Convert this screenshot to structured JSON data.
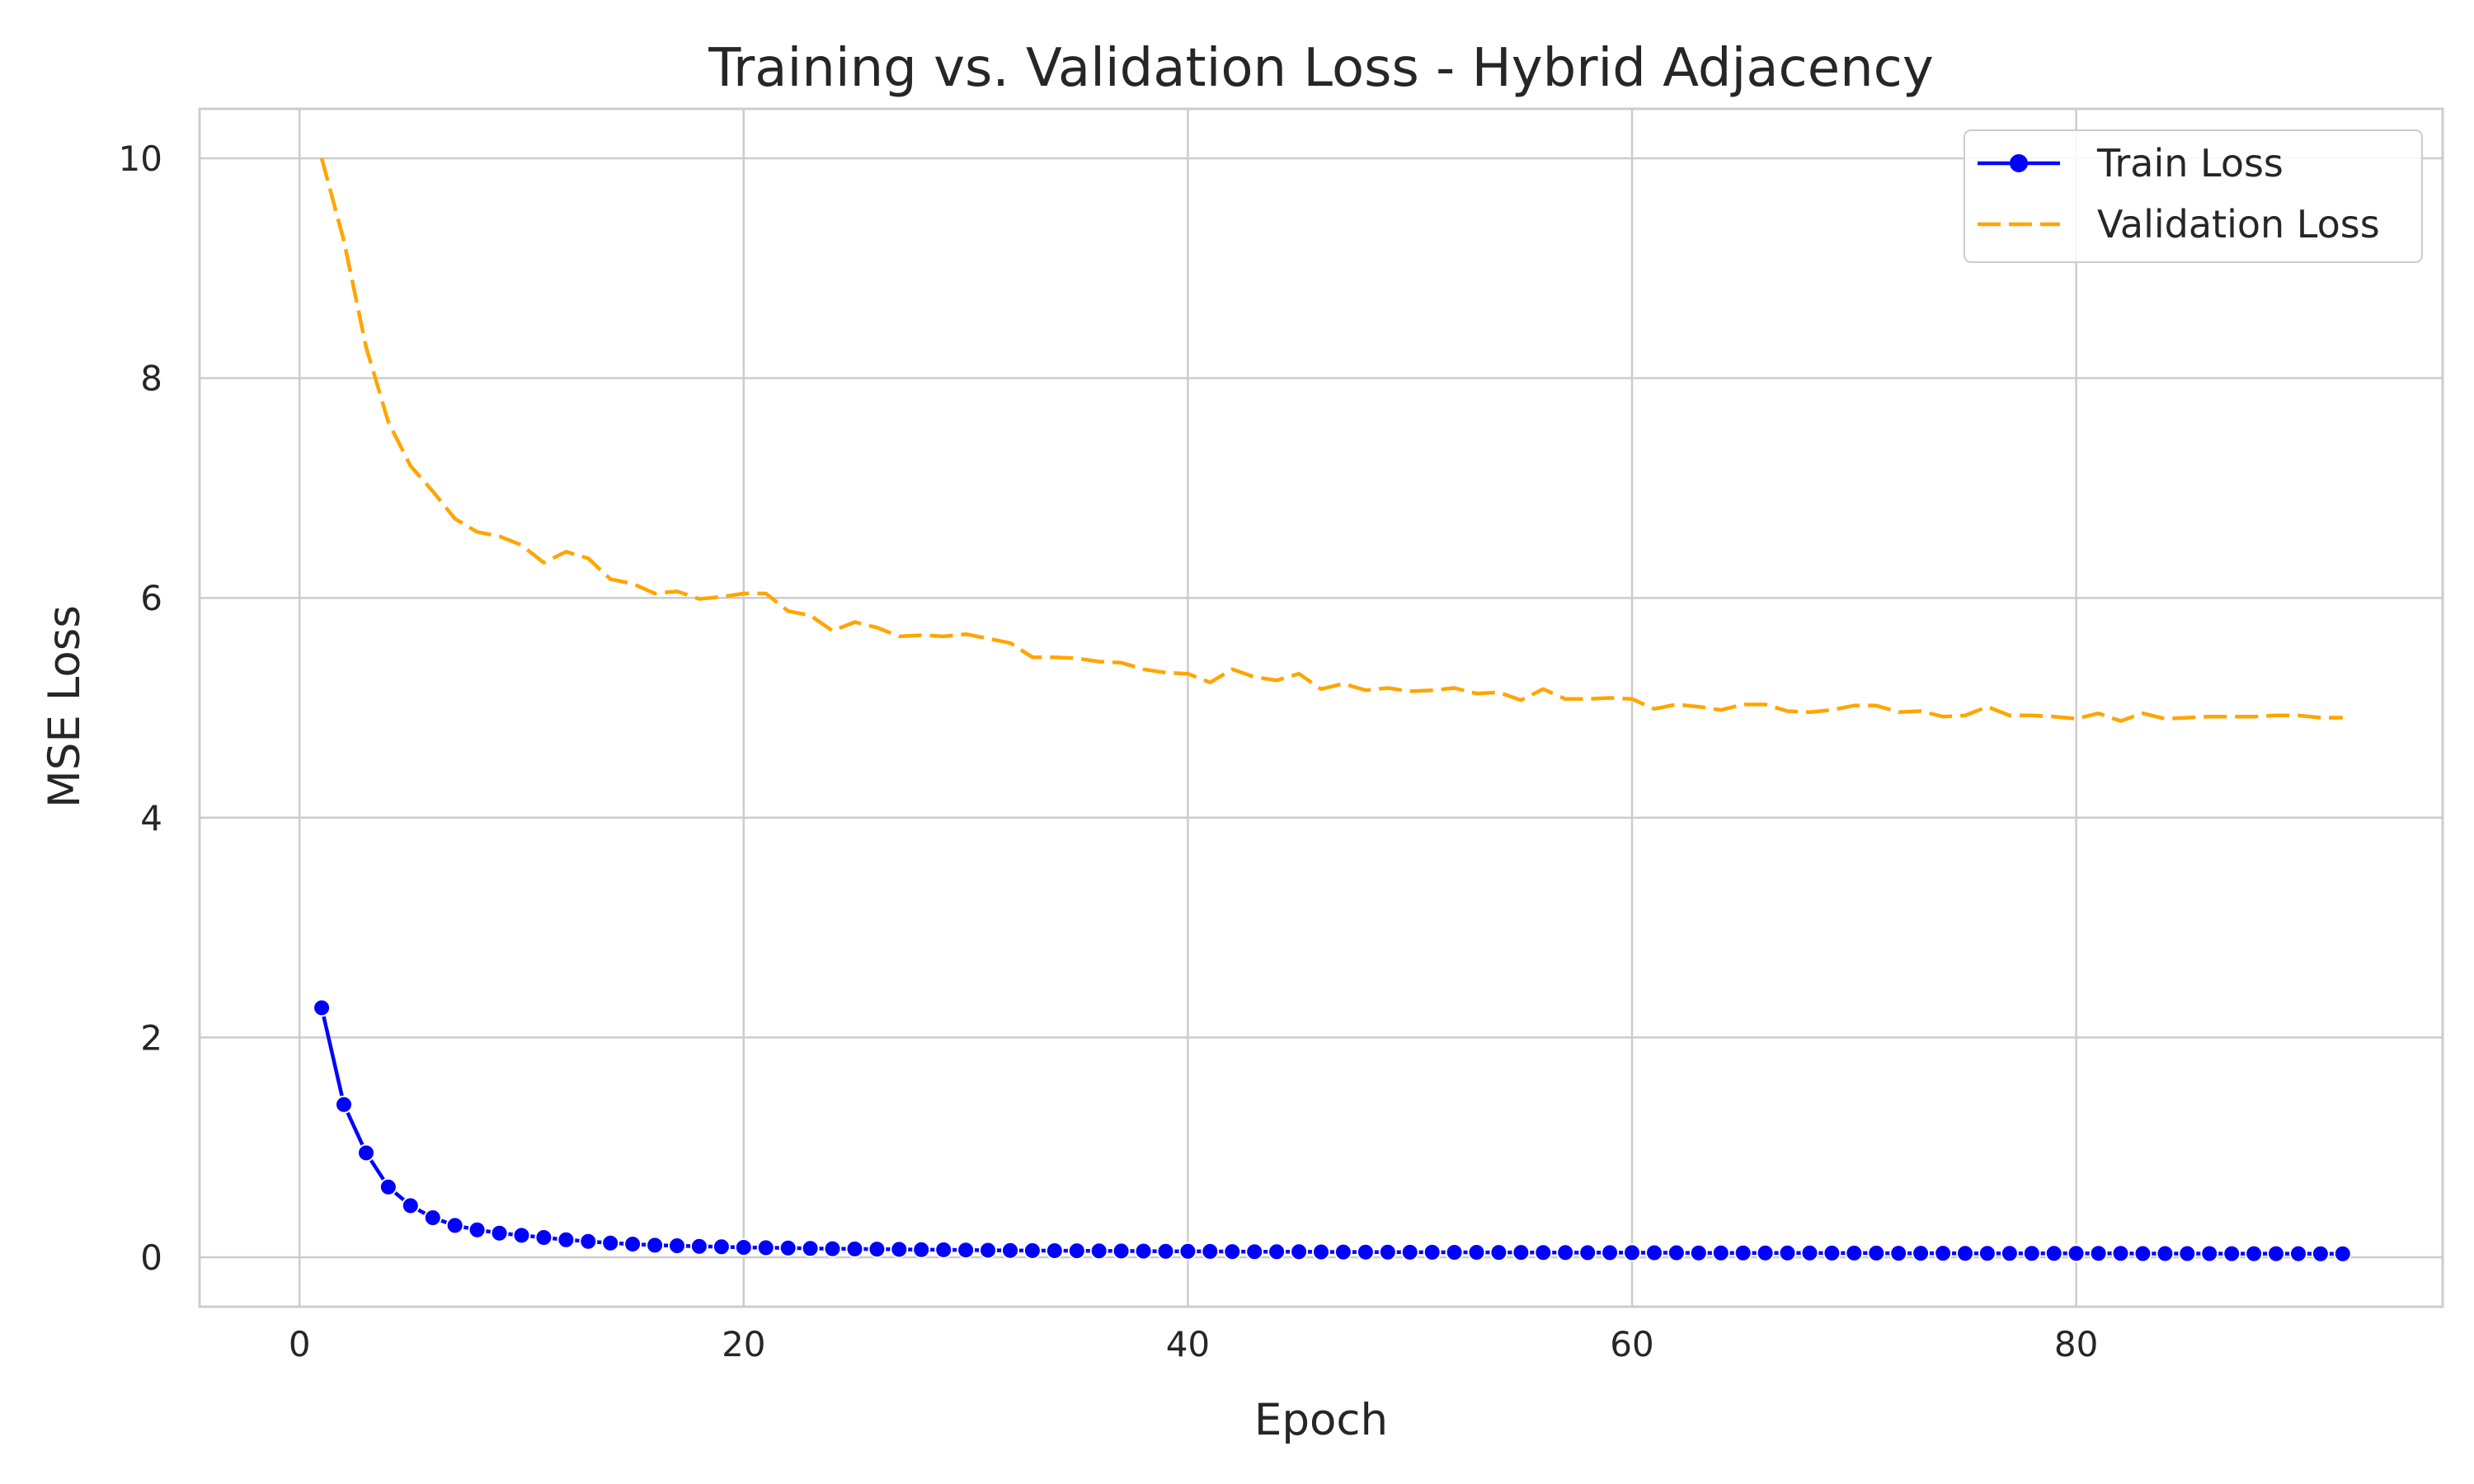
{
  "chart_data": {
    "type": "line",
    "title": "Training vs. Validation Loss - Hybrid Adjacency",
    "xlabel": "Epoch",
    "ylabel": "MSE Loss",
    "xlim": [
      -4.5,
      96.5
    ],
    "ylim": [
      -0.45,
      10.45
    ],
    "xticks": [
      0,
      20,
      40,
      60,
      80
    ],
    "yticks": [
      0,
      2,
      4,
      6,
      8,
      10
    ],
    "grid": true,
    "legend_position": "top-right",
    "x": [
      1,
      2,
      3,
      4,
      5,
      6,
      7,
      8,
      9,
      10,
      11,
      12,
      13,
      14,
      15,
      16,
      17,
      18,
      19,
      20,
      21,
      22,
      23,
      24,
      25,
      26,
      27,
      28,
      29,
      30,
      31,
      32,
      33,
      34,
      35,
      36,
      37,
      38,
      39,
      40,
      41,
      42,
      43,
      44,
      45,
      46,
      47,
      48,
      49,
      50,
      51,
      52,
      53,
      54,
      55,
      56,
      57,
      58,
      59,
      60,
      61,
      62,
      63,
      64,
      65,
      66,
      67,
      68,
      69,
      70,
      71,
      72,
      73,
      74,
      75,
      76,
      77,
      78,
      79,
      80,
      81,
      82,
      83,
      84,
      85,
      86,
      87,
      88,
      89,
      90,
      91,
      92
    ],
    "series": [
      {
        "name": "Train Loss",
        "color": "#0000ff",
        "style": "solid",
        "marker": "circle",
        "values": [
          2.27,
          1.39,
          0.95,
          0.64,
          0.47,
          0.36,
          0.29,
          0.25,
          0.22,
          0.2,
          0.18,
          0.16,
          0.145,
          0.13,
          0.12,
          0.11,
          0.105,
          0.1,
          0.095,
          0.09,
          0.087,
          0.084,
          0.081,
          0.078,
          0.076,
          0.074,
          0.072,
          0.07,
          0.068,
          0.066,
          0.064,
          0.062,
          0.061,
          0.06,
          0.059,
          0.058,
          0.057,
          0.056,
          0.055,
          0.054,
          0.053,
          0.052,
          0.051,
          0.05,
          0.05,
          0.049,
          0.048,
          0.047,
          0.047,
          0.046,
          0.046,
          0.045,
          0.045,
          0.044,
          0.044,
          0.043,
          0.043,
          0.042,
          0.042,
          0.042,
          0.041,
          0.041,
          0.04,
          0.04,
          0.04,
          0.039,
          0.039,
          0.039,
          0.038,
          0.038,
          0.038,
          0.037,
          0.037,
          0.037,
          0.036,
          0.036,
          0.036,
          0.036,
          0.035,
          0.035,
          0.035,
          0.035,
          0.034,
          0.034,
          0.034,
          0.034,
          0.033,
          0.033,
          0.033,
          0.033,
          0.032,
          0.032
        ]
      },
      {
        "name": "Validation Loss",
        "color": "#ffa500",
        "style": "dashed",
        "values": [
          10.0,
          9.25,
          8.28,
          7.6,
          7.2,
          6.97,
          6.72,
          6.6,
          6.56,
          6.48,
          6.32,
          6.42,
          6.36,
          6.17,
          6.13,
          6.04,
          6.06,
          5.99,
          6.01,
          6.04,
          6.04,
          5.88,
          5.84,
          5.7,
          5.78,
          5.73,
          5.65,
          5.66,
          5.65,
          5.67,
          5.63,
          5.59,
          5.46,
          5.46,
          5.45,
          5.42,
          5.41,
          5.35,
          5.32,
          5.31,
          5.23,
          5.35,
          5.28,
          5.25,
          5.31,
          5.17,
          5.22,
          5.16,
          5.18,
          5.15,
          5.16,
          5.18,
          5.13,
          5.14,
          5.07,
          5.17,
          5.08,
          5.08,
          5.09,
          5.08,
          4.99,
          5.03,
          5.01,
          4.98,
          5.03,
          5.03,
          4.97,
          4.96,
          4.98,
          5.02,
          5.02,
          4.96,
          4.97,
          4.92,
          4.93,
          5.01,
          4.93,
          4.93,
          4.92,
          4.9,
          4.95,
          4.88,
          4.95,
          4.9,
          4.91,
          4.92,
          4.92,
          4.92,
          4.93,
          4.93,
          4.91,
          4.91
        ]
      }
    ]
  }
}
